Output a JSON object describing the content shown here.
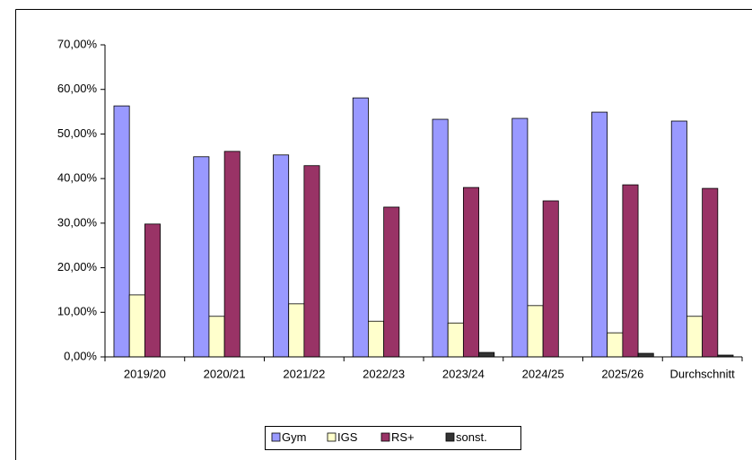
{
  "chart_data": {
    "type": "bar",
    "categories": [
      "2019/20",
      "2020/21",
      "2021/22",
      "2022/23",
      "2023/24",
      "2024/25",
      "2025/26",
      "Durchschnitt"
    ],
    "series": [
      {
        "name": "Gym",
        "color": "#9999ff",
        "values": [
          56.3,
          44.9,
          45.3,
          58.1,
          53.3,
          53.5,
          54.9,
          52.9
        ]
      },
      {
        "name": "IGS",
        "color": "#ffffcc",
        "values": [
          13.9,
          9.1,
          11.9,
          8.0,
          7.6,
          11.5,
          5.4,
          9.1
        ]
      },
      {
        "name": "RS+",
        "color": "#993366",
        "values": [
          29.8,
          46.1,
          42.9,
          33.6,
          38.0,
          35.0,
          38.6,
          37.8
        ]
      },
      {
        "name": "sonst.",
        "color": "#333333",
        "values": [
          0,
          0,
          0,
          0,
          1.0,
          0,
          0.8,
          0.4
        ]
      }
    ],
    "ylim": [
      0,
      70
    ],
    "yticks": [
      {
        "value": 0,
        "label": "0,00%"
      },
      {
        "value": 10,
        "label": "10,00%"
      },
      {
        "value": 20,
        "label": "20,00%"
      },
      {
        "value": 30,
        "label": "30,00%"
      },
      {
        "value": 40,
        "label": "40,00%"
      },
      {
        "value": 50,
        "label": "50,00%"
      },
      {
        "value": 60,
        "label": "60,00%"
      },
      {
        "value": 70,
        "label": "70,00%"
      }
    ],
    "grid": false,
    "legend": "bottom"
  }
}
